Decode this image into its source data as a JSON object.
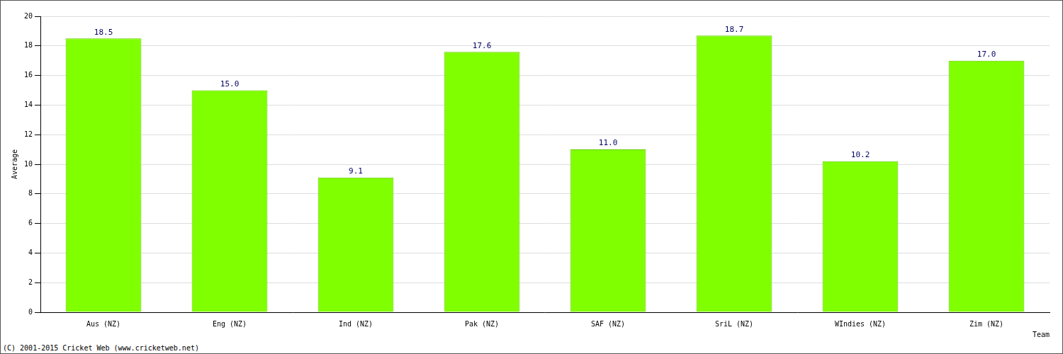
{
  "chart_data": {
    "type": "bar",
    "categories": [
      "Aus (NZ)",
      "Eng (NZ)",
      "Ind (NZ)",
      "Pak (NZ)",
      "SAF (NZ)",
      "SriL (NZ)",
      "WIndies (NZ)",
      "Zim (NZ)"
    ],
    "values": [
      18.5,
      15.0,
      9.1,
      17.6,
      11.0,
      18.7,
      10.2,
      17.0
    ],
    "value_labels": [
      "18.5",
      "15.0",
      "9.1",
      "17.6",
      "11.0",
      "18.7",
      "10.2",
      "17.0"
    ],
    "data_labels": true,
    "color": "#80ff00",
    "x_label": "Team",
    "y_label": "Average",
    "annotation": "(C) 2001-2015 Cricket Web (www.cricketweb.net)",
    "ylim": [
      0,
      20
    ],
    "yticks": [
      0,
      2,
      4,
      6,
      8,
      10,
      12,
      14,
      16,
      18,
      20
    ],
    "grid": true
  }
}
